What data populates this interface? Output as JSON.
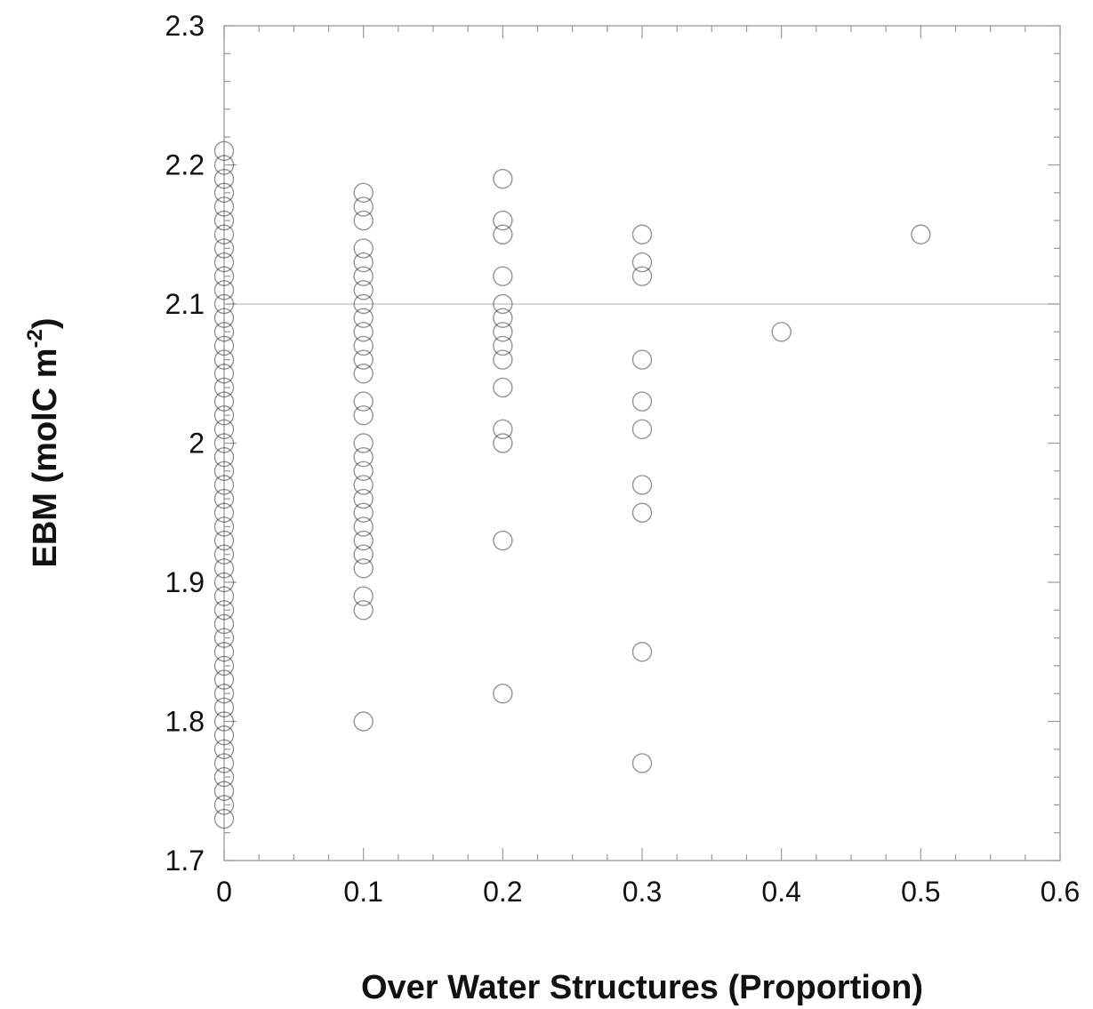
{
  "chart_data": {
    "type": "scatter",
    "xlabel": "Over Water Structures (Proportion)",
    "ylabel_main": "EBM (molC m",
    "ylabel_sup": "-2",
    "ylabel_close": ")",
    "xlim": [
      0,
      0.6
    ],
    "ylim": [
      1.7,
      2.3
    ],
    "xticks": [
      0,
      0.1,
      0.2,
      0.3,
      0.4,
      0.5,
      0.6
    ],
    "xtick_labels": [
      "0",
      "0.1",
      "0.2",
      "0.3",
      "0.4",
      "0.5",
      "0.6"
    ],
    "yticks": [
      1.7,
      1.8,
      1.9,
      2.0,
      2.1,
      2.2,
      2.3
    ],
    "ytick_labels": [
      "1.7",
      "1.8",
      "1.9",
      "2",
      "2.1",
      "2.2",
      "2.3"
    ],
    "reference_line_y": 2.1,
    "marker": "open-circle",
    "marker_color": "#000000",
    "series": [
      {
        "x": 0,
        "y": [
          1.73,
          1.74,
          1.75,
          1.76,
          1.77,
          1.78,
          1.79,
          1.8,
          1.81,
          1.82,
          1.83,
          1.84,
          1.85,
          1.86,
          1.87,
          1.88,
          1.89,
          1.9,
          1.91,
          1.92,
          1.93,
          1.94,
          1.95,
          1.96,
          1.97,
          1.98,
          1.99,
          2.0,
          2.01,
          2.02,
          2.03,
          2.04,
          2.05,
          2.06,
          2.07,
          2.08,
          2.09,
          2.1,
          2.11,
          2.12,
          2.13,
          2.14,
          2.15,
          2.16,
          2.17,
          2.18,
          2.19,
          2.2,
          2.21
        ]
      },
      {
        "x": 0.1,
        "y": [
          1.8,
          1.88,
          1.89,
          1.91,
          1.92,
          1.93,
          1.94,
          1.95,
          1.96,
          1.97,
          1.98,
          1.99,
          2.0,
          2.02,
          2.03,
          2.05,
          2.06,
          2.07,
          2.08,
          2.09,
          2.1,
          2.11,
          2.12,
          2.13,
          2.14,
          2.16,
          2.17,
          2.18
        ]
      },
      {
        "x": 0.2,
        "y": [
          1.82,
          1.93,
          2.0,
          2.01,
          2.04,
          2.06,
          2.07,
          2.08,
          2.09,
          2.1,
          2.12,
          2.15,
          2.16,
          2.19
        ]
      },
      {
        "x": 0.3,
        "y": [
          1.77,
          1.85,
          1.95,
          1.97,
          2.01,
          2.03,
          2.06,
          2.12,
          2.13,
          2.15
        ]
      },
      {
        "x": 0.4,
        "y": [
          2.08
        ]
      },
      {
        "x": 0.5,
        "y": [
          2.15
        ]
      }
    ]
  }
}
